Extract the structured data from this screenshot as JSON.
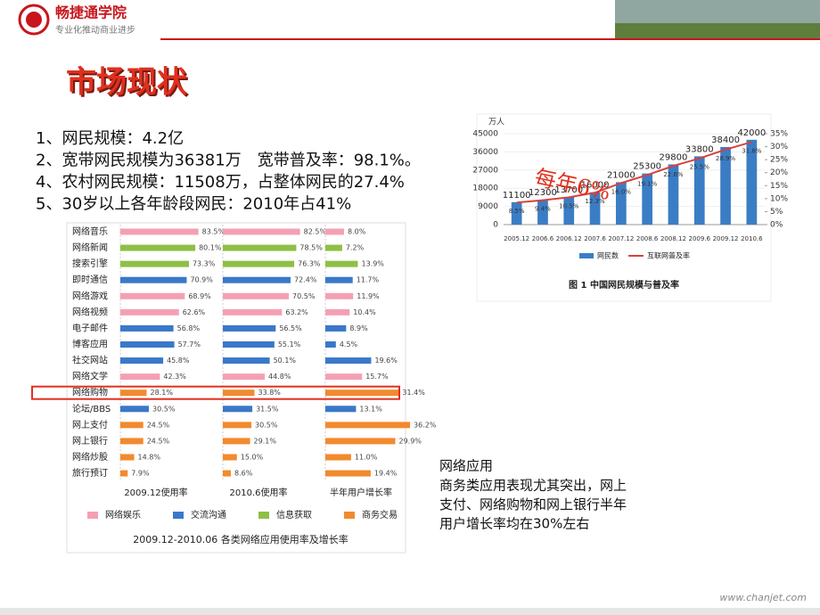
{
  "header": {
    "brand": "畅捷通学院",
    "tagline": "专业化推动商业进步"
  },
  "title": "市场现状",
  "bullets": [
    "1、网民规模：4.2亿",
    "2、宽带网民规模为36381万　宽带普及率：98.1%。",
    "4、农村网民规模：11508万，占整体网民的27.4%",
    "5、30岁以上各年龄段网民：2010年占41%"
  ],
  "note": {
    "heading": "网络应用",
    "lines": [
      "商务类应用表现尤其突出，网上",
      "支付、网络购物和网上银行半年",
      "用户增长率均在30%左右"
    ]
  },
  "footer": "www.chanjet.com",
  "chart_data": [
    {
      "type": "hbar-panels",
      "caption": "2009.12-2010.06 各类网络应用使用率及增长率",
      "categories": [
        "网络音乐",
        "网络新闻",
        "搜索引擎",
        "即时通信",
        "网络游戏",
        "网络视频",
        "电子邮件",
        "博客应用",
        "社交网站",
        "网络文学",
        "网络购物",
        "论坛/BBS",
        "网上支付",
        "网上银行",
        "网络炒股",
        "旅行预订"
      ],
      "colors": [
        "#f4a0b4",
        "#8fbf45",
        "#8fbf45",
        "#3a78c9",
        "#f4a0b4",
        "#f4a0b4",
        "#3a78c9",
        "#3a78c9",
        "#3a78c9",
        "#f4a0b4",
        "#f28a2e",
        "#3a78c9",
        "#f28a2e",
        "#f28a2e",
        "#f28a2e",
        "#f28a2e"
      ],
      "legend": [
        {
          "name": "网络娱乐",
          "color": "#f4a0b4"
        },
        {
          "name": "交流沟通",
          "color": "#3a78c9"
        },
        {
          "name": "信息获取",
          "color": "#8fbf45"
        },
        {
          "name": "商务交易",
          "color": "#f28a2e"
        }
      ],
      "series": [
        {
          "name": "2009.12使用率",
          "xlim": [
            0,
            100
          ],
          "values": [
            83.5,
            80.1,
            73.3,
            70.9,
            68.9,
            62.6,
            56.8,
            57.7,
            45.8,
            42.3,
            28.1,
            30.5,
            24.5,
            24.5,
            14.8,
            7.9
          ],
          "value_labels": [
            "83.5%",
            "80.1%",
            "73.3%",
            "70.9%",
            "68.9%",
            "62.6%",
            "56.8%",
            "57.7%",
            "45.8%",
            "42.3%",
            "28.1%",
            "30.5%",
            "24.5%",
            "24.5%",
            "14.8%",
            "7.9%"
          ]
        },
        {
          "name": "2010.6使用率",
          "xlim": [
            0,
            100
          ],
          "values": [
            82.5,
            78.5,
            76.3,
            72.4,
            70.5,
            63.2,
            56.5,
            55.1,
            50.1,
            44.8,
            33.8,
            31.5,
            30.5,
            29.1,
            15.0,
            8.6
          ],
          "value_labels": [
            "82.5%",
            "78.5%",
            "76.3%",
            "72.4%",
            "70.5%",
            "63.2%",
            "56.5%",
            "55.1%",
            "50.1%",
            "44.8%",
            "33.8%",
            "31.5%",
            "30.5%",
            "29.1%",
            "15.0%",
            "8.6%"
          ]
        },
        {
          "name": "半年用户增长率",
          "xlim": [
            0,
            40
          ],
          "values": [
            8.0,
            7.2,
            13.9,
            11.7,
            11.9,
            10.4,
            8.9,
            4.5,
            19.6,
            15.7,
            31.4,
            13.1,
            36.2,
            29.9,
            11.0,
            19.4
          ],
          "value_labels": [
            "8.0%",
            "7.2%",
            "13.9%",
            "11.7%",
            "11.9%",
            "10.4%",
            "8.9%",
            "4.5%",
            "19.6%",
            "15.7%",
            "31.4%",
            "13.1%",
            "36.2%",
            "29.9%",
            "11.0%",
            "19.4%"
          ]
        }
      ]
    },
    {
      "type": "bar-line",
      "caption": "图 1 中国网民规模与普及率",
      "ylabel": "万人",
      "annotation": "每年6%",
      "categories": [
        "2005.12",
        "2006.6",
        "2006.12",
        "2007.6",
        "2007.12",
        "2008.6",
        "2008.12",
        "2009.6",
        "2009.12",
        "2010.6"
      ],
      "ylim": [
        0,
        45000
      ],
      "yticks": [
        0,
        9000,
        18000,
        27000,
        36000,
        45000
      ],
      "y2lim": [
        0,
        35
      ],
      "y2ticks": [
        {
          "value": 0,
          "label": "0%"
        },
        {
          "value": 5,
          "label": "5%"
        },
        {
          "value": 10,
          "label": "10%"
        },
        {
          "value": 15,
          "label": "15%"
        },
        {
          "value": 20,
          "label": "20%"
        },
        {
          "value": 25,
          "label": "25%"
        },
        {
          "value": 30,
          "label": "30%"
        },
        {
          "value": 35,
          "label": "35%"
        }
      ],
      "series": [
        {
          "name": "网民数",
          "color": "#3b7dc4",
          "values": [
            11100,
            12300,
            13700,
            16000,
            21000,
            25300,
            29800,
            33800,
            38400,
            42000
          ]
        },
        {
          "name": "互联网普及率",
          "color": "#d9413a",
          "axis": "y2",
          "values": [
            8.5,
            9.4,
            10.5,
            12.3,
            16.0,
            19.1,
            22.6,
            25.5,
            28.9,
            31.8
          ],
          "value_labels": [
            "8.5%",
            "9.4%",
            "10.5%",
            "12.3%",
            "16.0%",
            "19.1%",
            "22.6%",
            "25.5%",
            "28.9%",
            "31.8%"
          ]
        }
      ]
    }
  ]
}
